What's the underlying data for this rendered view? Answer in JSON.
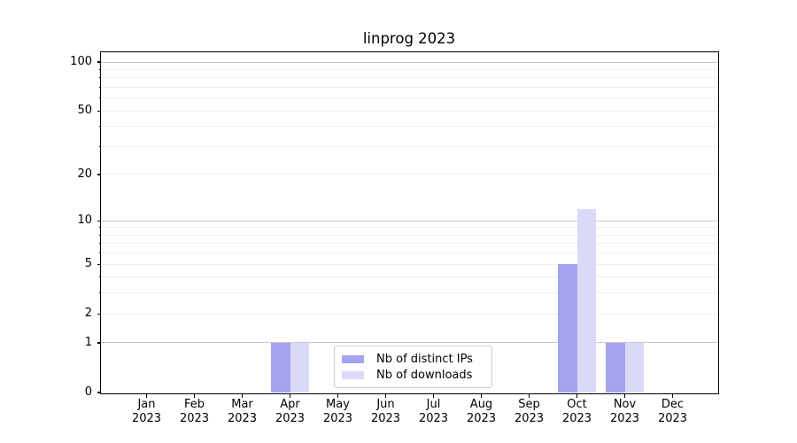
{
  "chart_data": {
    "type": "bar",
    "title": "linprog 2023",
    "categories": [
      "Jan",
      "Feb",
      "Mar",
      "Apr",
      "May",
      "Jun",
      "Jul",
      "Aug",
      "Sep",
      "Oct",
      "Nov",
      "Dec"
    ],
    "category_year": "2023",
    "series": [
      {
        "name": "Nb of distinct IPs",
        "color": "#a3a3ee",
        "values": [
          0,
          0,
          0,
          1,
          0,
          0,
          0,
          0,
          0,
          5,
          1,
          0
        ]
      },
      {
        "name": "Nb of downloads",
        "color": "#dadaf8",
        "values": [
          0,
          0,
          0,
          1,
          0,
          0,
          0,
          0,
          0,
          12,
          1,
          0
        ]
      }
    ],
    "y_axis": {
      "scale": "log10(1+value)",
      "tick_values": [
        100,
        50,
        20,
        10,
        5,
        2,
        1,
        0
      ],
      "major_grid_values": [
        1,
        10,
        100
      ],
      "minor_grid_values": [
        2,
        3,
        4,
        5,
        6,
        7,
        8,
        9,
        20,
        30,
        40,
        50,
        60,
        70,
        80,
        90
      ],
      "ylim": [
        0,
        115
      ]
    },
    "grid": "horizontal",
    "legend_location": "lower center"
  },
  "colors": {
    "background": "#ffffff",
    "spine": "#000000",
    "text": "#000000",
    "major_grid": "#c8c8c8",
    "minor_grid": "#efefef",
    "legend_border": "#cccccc"
  }
}
